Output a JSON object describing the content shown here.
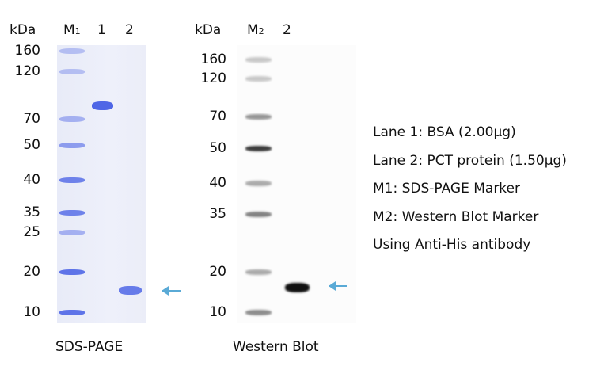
{
  "sds_page": {
    "caption": "SDS-PAGE",
    "unit_label": "kDa",
    "marker_label": "M",
    "marker_sub": "1",
    "lanes": [
      "1",
      "2"
    ],
    "marker_weights": [
      "160",
      "120",
      "70",
      "50",
      "40",
      "35",
      "25",
      "20",
      "10"
    ]
  },
  "western_blot": {
    "caption": "Western Blot",
    "unit_label": "kDa",
    "marker_label": "M",
    "marker_sub": "2",
    "lanes": [
      "2"
    ],
    "marker_weights": [
      "160",
      "120",
      "70",
      "50",
      "40",
      "35",
      "20",
      "10"
    ]
  },
  "legend": [
    "Lane 1: BSA (2.00μg)",
    "Lane 2: PCT protein (1.50μg)",
    "M1: SDS-PAGE Marker",
    "M2: Western Blot Marker",
    "Using Anti-His antibody"
  ],
  "colors": {
    "coomassie_band": "#4f66e6",
    "arrow": "#5aaad6",
    "blot_band": "#333333"
  }
}
